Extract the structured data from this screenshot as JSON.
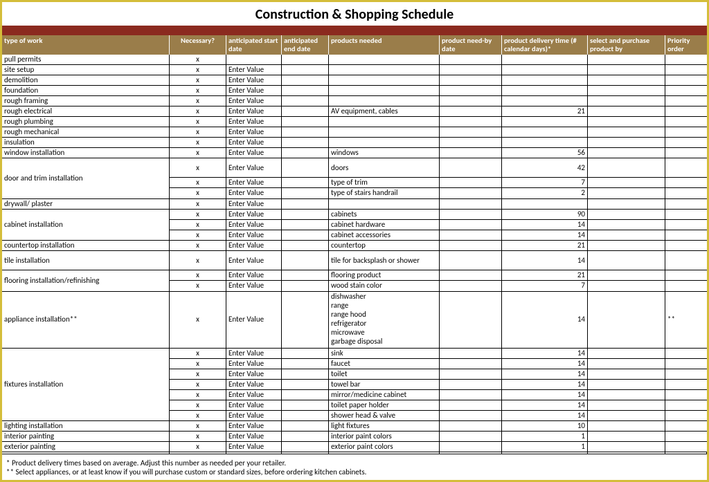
{
  "title": "Construction & Shopping Schedule",
  "columns": [
    "type of work",
    "Necessary?",
    "anticipated start date",
    "anticipated end date",
    "products needed",
    "product    need-by date",
    "product delivery time (# calendar days)*",
    "select and purchase product by",
    "Priority order"
  ],
  "rows": [
    {
      "work": "pull permits",
      "nec": "x",
      "start": "",
      "end": "",
      "prod": "",
      "needby": "",
      "deliv": "",
      "buy": "",
      "prio": "",
      "group": 1
    },
    {
      "work": "site setup",
      "nec": "x",
      "start": "Enter Value",
      "end": "",
      "prod": "",
      "needby": "",
      "deliv": "",
      "buy": "",
      "prio": "",
      "group": 1
    },
    {
      "work": "demolition",
      "nec": "x",
      "start": "Enter Value",
      "end": "",
      "prod": "",
      "needby": "",
      "deliv": "",
      "buy": "",
      "prio": "",
      "group": 1
    },
    {
      "work": "foundation",
      "nec": "x",
      "start": "Enter Value",
      "end": "",
      "prod": "",
      "needby": "",
      "deliv": "",
      "buy": "",
      "prio": "",
      "group": 1
    },
    {
      "work": "rough framing",
      "nec": "x",
      "start": "Enter Value",
      "end": "",
      "prod": "",
      "needby": "",
      "deliv": "",
      "buy": "",
      "prio": "",
      "group": 1
    },
    {
      "work": "rough electrical",
      "nec": "x",
      "start": "Enter Value",
      "end": "",
      "prod": "AV equipment, cables",
      "needby": "",
      "deliv": "21",
      "buy": "",
      "prio": "",
      "group": 1
    },
    {
      "work": "rough plumbing",
      "nec": "x",
      "start": "Enter Value",
      "end": "",
      "prod": "",
      "needby": "",
      "deliv": "",
      "buy": "",
      "prio": "",
      "group": 1
    },
    {
      "work": "rough mechanical",
      "nec": "x",
      "start": "Enter Value",
      "end": "",
      "prod": "",
      "needby": "",
      "deliv": "",
      "buy": "",
      "prio": "",
      "group": 1
    },
    {
      "work": "insulation",
      "nec": "x",
      "start": "Enter Value",
      "end": "",
      "prod": "",
      "needby": "",
      "deliv": "",
      "buy": "",
      "prio": "",
      "group": 1
    },
    {
      "work": "window installation",
      "nec": "x",
      "start": "Enter Value",
      "end": "",
      "prod": "windows",
      "needby": "",
      "deliv": "56",
      "buy": "",
      "prio": "",
      "group": 1
    },
    {
      "work": "",
      "nec": "x",
      "start": "Enter Value",
      "end": "",
      "prod": "doors",
      "needby": "",
      "deliv": "42",
      "buy": "",
      "prio": "",
      "group": 3,
      "span_label": "door and trim installation",
      "span": 3,
      "tall": 1
    },
    {
      "work": "",
      "nec": "x",
      "start": "Enter Value",
      "end": "",
      "prod": "type of trim",
      "needby": "",
      "deliv": "7",
      "buy": "",
      "prio": "",
      "group": 3,
      "skip_first": 1
    },
    {
      "work": "",
      "nec": "x",
      "start": "Enter Value",
      "end": "",
      "prod": "type of stairs handrail",
      "needby": "",
      "deliv": "2",
      "buy": "",
      "prio": "",
      "group": 3,
      "skip_first": 1
    },
    {
      "work": "drywall/ plaster",
      "nec": "x",
      "start": "Enter Value",
      "end": "",
      "prod": "",
      "needby": "",
      "deliv": "",
      "buy": "",
      "prio": "",
      "group": 1
    },
    {
      "work": "",
      "nec": "x",
      "start": "Enter Value",
      "end": "",
      "prod": "cabinets",
      "needby": "",
      "deliv": "90",
      "buy": "",
      "prio": "",
      "group": 3,
      "span_label": "cabinet installation",
      "span": 3
    },
    {
      "work": "",
      "nec": "x",
      "start": "Enter Value",
      "end": "",
      "prod": "cabinet hardware",
      "needby": "",
      "deliv": "14",
      "buy": "",
      "prio": "",
      "group": 3,
      "skip_first": 1
    },
    {
      "work": "",
      "nec": "x",
      "start": "Enter Value",
      "end": "",
      "prod": "cabinet accessories",
      "needby": "",
      "deliv": "14",
      "buy": "",
      "prio": "",
      "group": 3,
      "skip_first": 1
    },
    {
      "work": "countertop installation",
      "nec": "x",
      "start": "Enter Value",
      "end": "",
      "prod": "countertop",
      "needby": "",
      "deliv": "21",
      "buy": "",
      "prio": "",
      "group": 1
    },
    {
      "work": "tile installation",
      "nec": "x",
      "start": "Enter Value",
      "end": "",
      "prod": "tile for backsplash or shower",
      "needby": "",
      "deliv": "14",
      "buy": "",
      "prio": "",
      "group": 1,
      "tall": 1
    },
    {
      "work": "",
      "nec": "x",
      "start": "Enter Value",
      "end": "",
      "prod": "flooring product",
      "needby": "",
      "deliv": "21",
      "buy": "",
      "prio": "",
      "group": 2,
      "span_label": "flooring installation/refinishing",
      "span": 2
    },
    {
      "work": "",
      "nec": "x",
      "start": "Enter Value",
      "end": "",
      "prod": "wood stain color",
      "needby": "",
      "deliv": "7",
      "buy": "",
      "prio": "",
      "group": 2,
      "skip_first": 1
    },
    {
      "work": "appliance installation**",
      "nec": "x",
      "start": "Enter Value",
      "end": "",
      "prod": "dishwasher\nrange\nrange hood\nrefrigerator\nmicrowave\ngarbage disposal",
      "needby": "",
      "deliv": "14",
      "buy": "",
      "prio": "**",
      "group": 1,
      "multi": 1
    },
    {
      "work": "",
      "nec": "x",
      "start": "Enter Value",
      "end": "",
      "prod": "sink",
      "needby": "",
      "deliv": "14",
      "buy": "",
      "prio": "",
      "group": 7,
      "span_label": "fixtures installation",
      "span": 7
    },
    {
      "work": "",
      "nec": "x",
      "start": "Enter Value",
      "end": "",
      "prod": "faucet",
      "needby": "",
      "deliv": "14",
      "buy": "",
      "prio": "",
      "group": 7,
      "skip_first": 1
    },
    {
      "work": "",
      "nec": "x",
      "start": "Enter Value",
      "end": "",
      "prod": "toilet",
      "needby": "",
      "deliv": "14",
      "buy": "",
      "prio": "",
      "group": 7,
      "skip_first": 1
    },
    {
      "work": "",
      "nec": "x",
      "start": "Enter Value",
      "end": "",
      "prod": "towel bar",
      "needby": "",
      "deliv": "14",
      "buy": "",
      "prio": "",
      "group": 7,
      "skip_first": 1
    },
    {
      "work": "",
      "nec": "x",
      "start": "Enter Value",
      "end": "",
      "prod": "mirror/medicine cabinet",
      "needby": "",
      "deliv": "14",
      "buy": "",
      "prio": "",
      "group": 7,
      "skip_first": 1
    },
    {
      "work": "",
      "nec": "x",
      "start": "Enter Value",
      "end": "",
      "prod": "toilet paper holder",
      "needby": "",
      "deliv": "14",
      "buy": "",
      "prio": "",
      "group": 7,
      "skip_first": 1
    },
    {
      "work": "",
      "nec": "x",
      "start": "Enter Value",
      "end": "",
      "prod": "shower head & valve",
      "needby": "",
      "deliv": "14",
      "buy": "",
      "prio": "",
      "group": 7,
      "skip_first": 1
    },
    {
      "work": "lighting installation",
      "nec": "x",
      "start": "Enter Value",
      "end": "",
      "prod": "light fixtures",
      "needby": "",
      "deliv": "10",
      "buy": "",
      "prio": "",
      "group": 1
    },
    {
      "work": "interior painting",
      "nec": "x",
      "start": "Enter Value",
      "end": "",
      "prod": "interior paint colors",
      "needby": "",
      "deliv": "1",
      "buy": "",
      "prio": "",
      "group": 1
    },
    {
      "work": "exterior painting",
      "nec": "x",
      "start": "Enter Value",
      "end": "",
      "prod": "exterior paint colors",
      "needby": "",
      "deliv": "1",
      "buy": "",
      "prio": "",
      "group": 1
    },
    {
      "work": "",
      "nec": "",
      "start": "",
      "end": "",
      "prod": "",
      "needby": "",
      "deliv": "",
      "buy": "",
      "prio": "",
      "group": 1,
      "blank": 1
    },
    {
      "work": "",
      "nec": "",
      "start": "",
      "end": "",
      "prod": "",
      "needby": "",
      "deliv": "",
      "buy": "",
      "prio": "",
      "group": 1,
      "blank": 1
    }
  ],
  "footnotes": [
    "* Product delivery times based on average. Adjust this number as needed per your retailer.",
    "** Select appliances, or at least know if you will purchase custom or standard sizes, before ordering kitchen cabinets."
  ],
  "colors": {
    "outer_border": "#d4bd3a",
    "title_bar": "#8b2a1f",
    "header_bg": "#9a7d4a",
    "header_fg": "#ffffff",
    "grid_line": "#000000"
  }
}
